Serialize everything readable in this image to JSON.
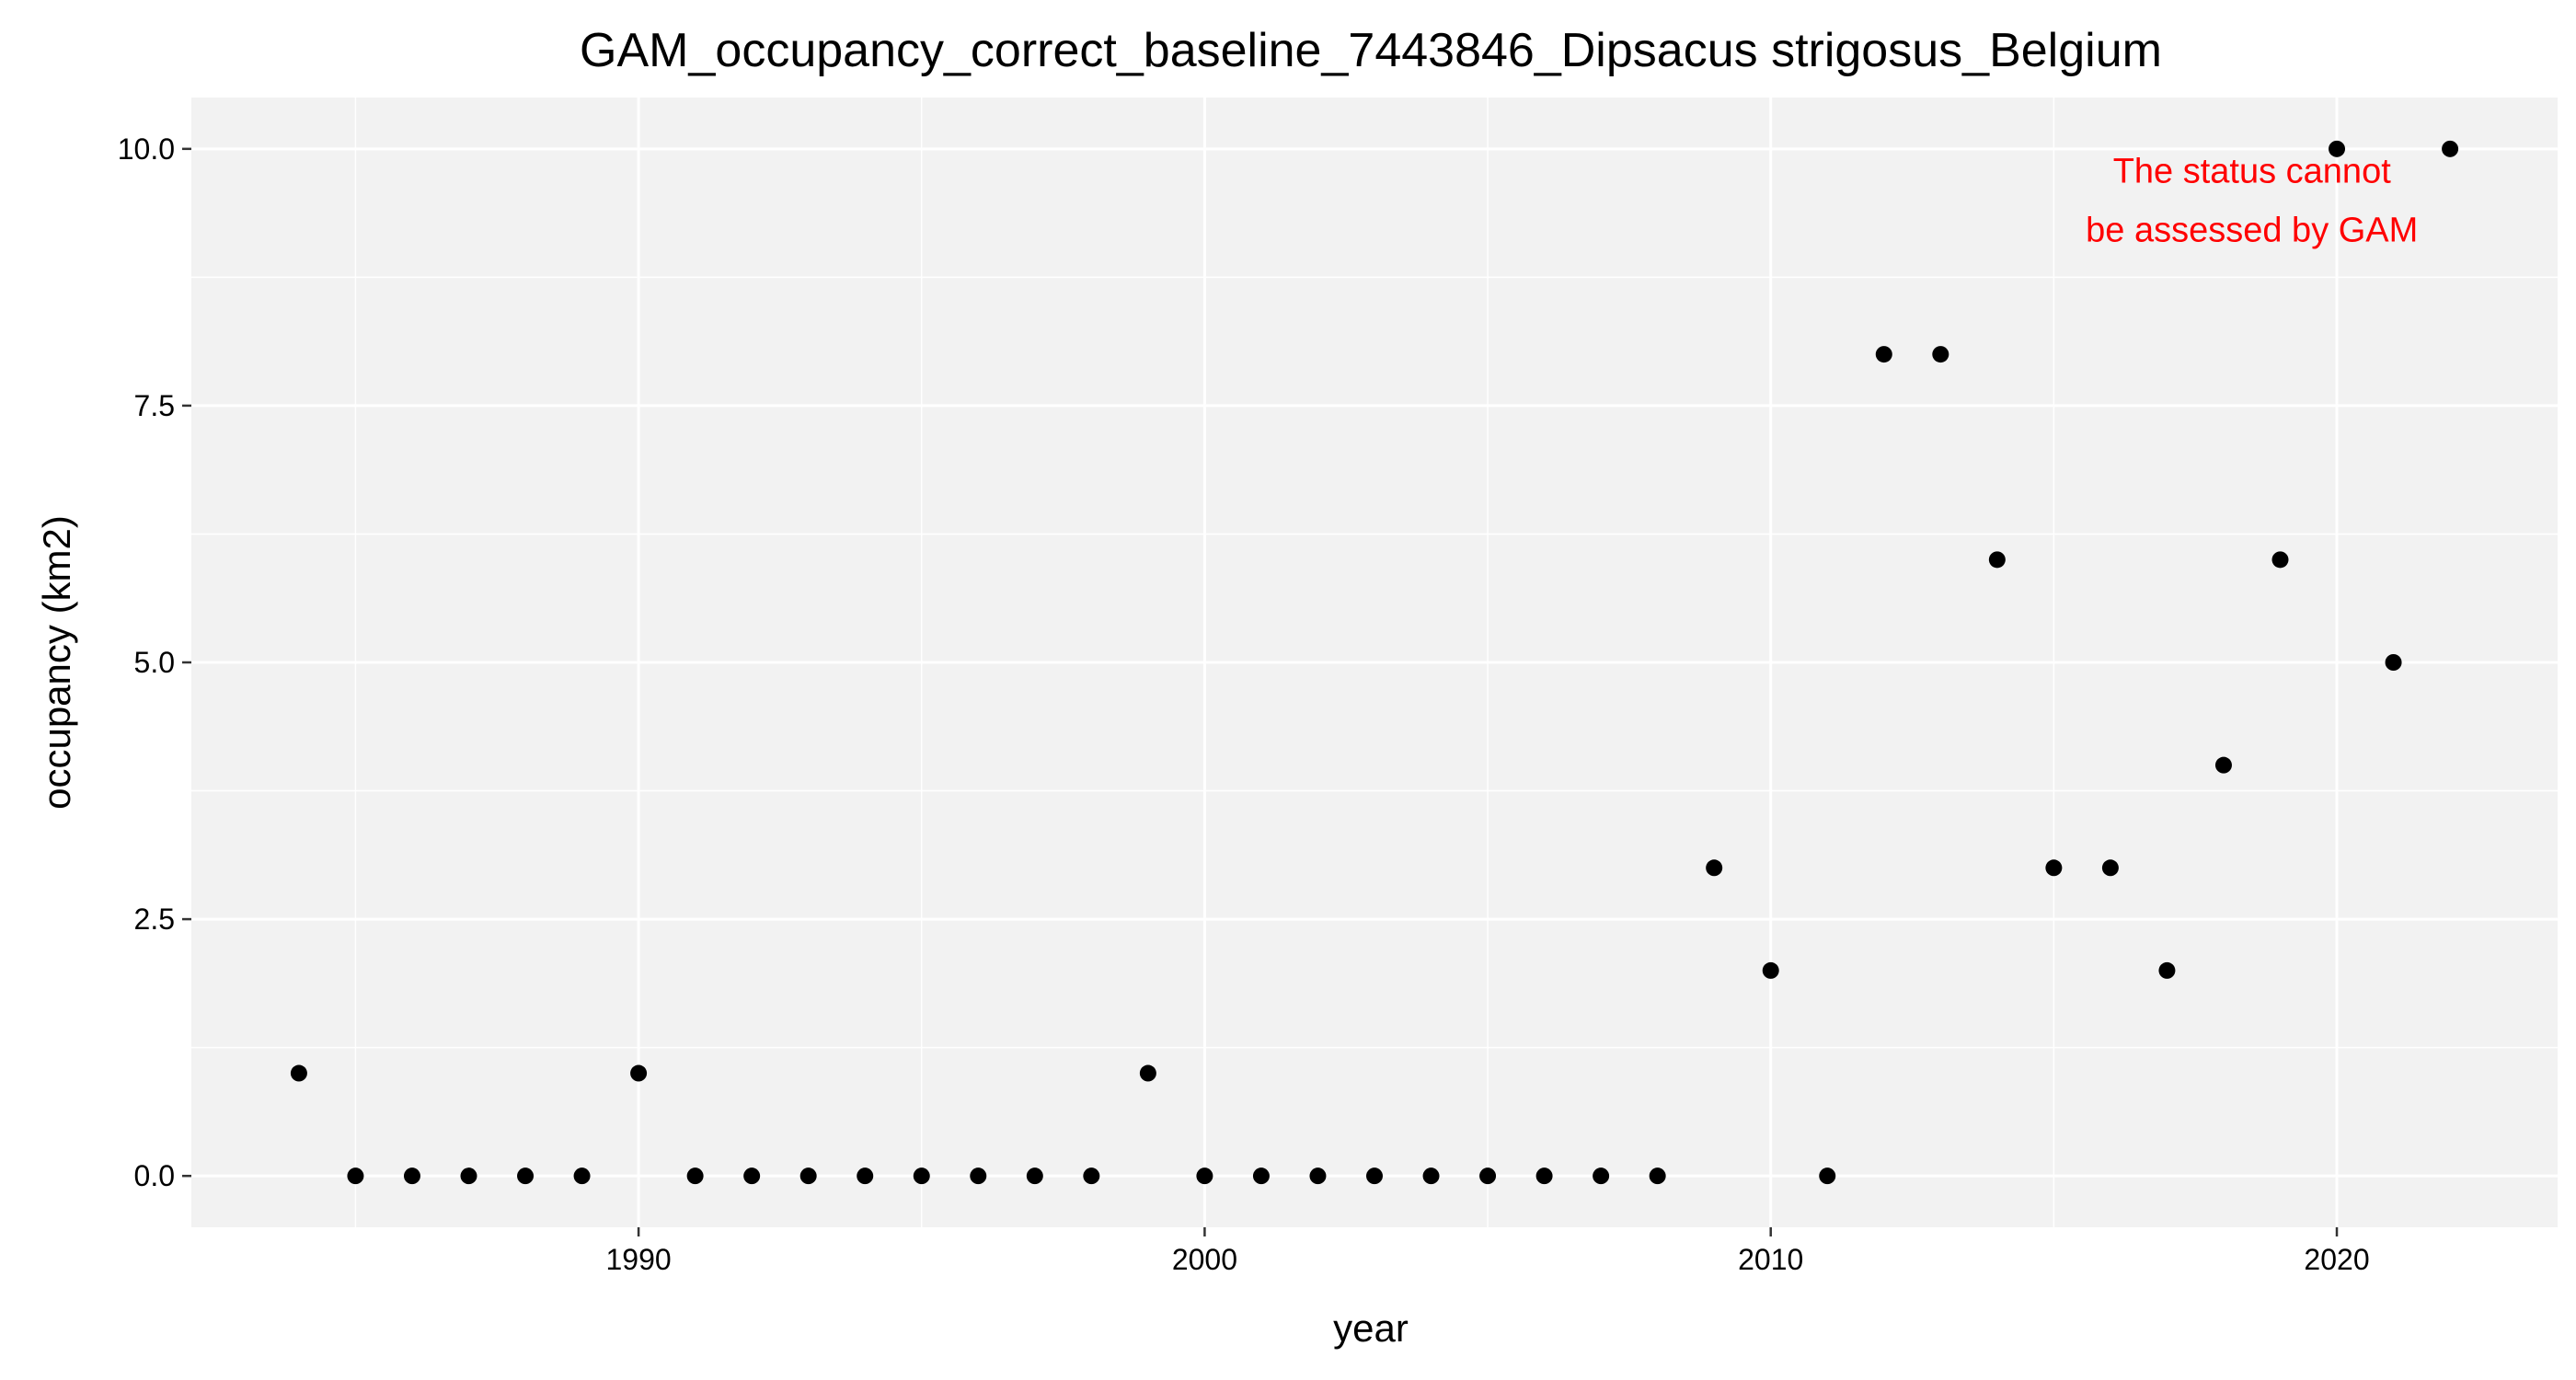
{
  "chart_data": {
    "type": "scatter",
    "title": "GAM_occupancy_correct_baseline_7443846_Dipsacus strigosus_Belgium",
    "xlabel": "year",
    "ylabel": "occupancy (km2)",
    "xlim": [
      1982.1,
      2023.9
    ],
    "ylim": [
      -0.5,
      10.5
    ],
    "x_ticks": [
      1990,
      2000,
      2010,
      2020
    ],
    "x_tick_labels": [
      "1990",
      "2000",
      "2010",
      "2020"
    ],
    "y_ticks": [
      0,
      2.5,
      5,
      7.5,
      10
    ],
    "y_tick_labels": [
      "0.0",
      "2.5",
      "5.0",
      "7.5",
      "10.0"
    ],
    "grid": true,
    "annotation": {
      "lines": [
        "The status cannot",
        "be assessed by GAM"
      ],
      "color": "#ff0000",
      "x": 2018.5,
      "y": 9.5
    },
    "point_color": "#000000",
    "panel_color": "#f2f2f2",
    "points": [
      {
        "x": 1984,
        "y": 1
      },
      {
        "x": 1985,
        "y": 0
      },
      {
        "x": 1986,
        "y": 0
      },
      {
        "x": 1987,
        "y": 0
      },
      {
        "x": 1988,
        "y": 0
      },
      {
        "x": 1989,
        "y": 0
      },
      {
        "x": 1990,
        "y": 1
      },
      {
        "x": 1991,
        "y": 0
      },
      {
        "x": 1992,
        "y": 0
      },
      {
        "x": 1993,
        "y": 0
      },
      {
        "x": 1994,
        "y": 0
      },
      {
        "x": 1995,
        "y": 0
      },
      {
        "x": 1996,
        "y": 0
      },
      {
        "x": 1997,
        "y": 0
      },
      {
        "x": 1998,
        "y": 0
      },
      {
        "x": 1999,
        "y": 1
      },
      {
        "x": 2000,
        "y": 0
      },
      {
        "x": 2001,
        "y": 0
      },
      {
        "x": 2002,
        "y": 0
      },
      {
        "x": 2003,
        "y": 0
      },
      {
        "x": 2004,
        "y": 0
      },
      {
        "x": 2005,
        "y": 0
      },
      {
        "x": 2006,
        "y": 0
      },
      {
        "x": 2007,
        "y": 0
      },
      {
        "x": 2008,
        "y": 0
      },
      {
        "x": 2009,
        "y": 3
      },
      {
        "x": 2010,
        "y": 2
      },
      {
        "x": 2011,
        "y": 0
      },
      {
        "x": 2012,
        "y": 8
      },
      {
        "x": 2013,
        "y": 8
      },
      {
        "x": 2014,
        "y": 6
      },
      {
        "x": 2015,
        "y": 3
      },
      {
        "x": 2016,
        "y": 3
      },
      {
        "x": 2017,
        "y": 2
      },
      {
        "x": 2018,
        "y": 4
      },
      {
        "x": 2019,
        "y": 6
      },
      {
        "x": 2020,
        "y": 10
      },
      {
        "x": 2021,
        "y": 5
      },
      {
        "x": 2022,
        "y": 10
      }
    ]
  }
}
